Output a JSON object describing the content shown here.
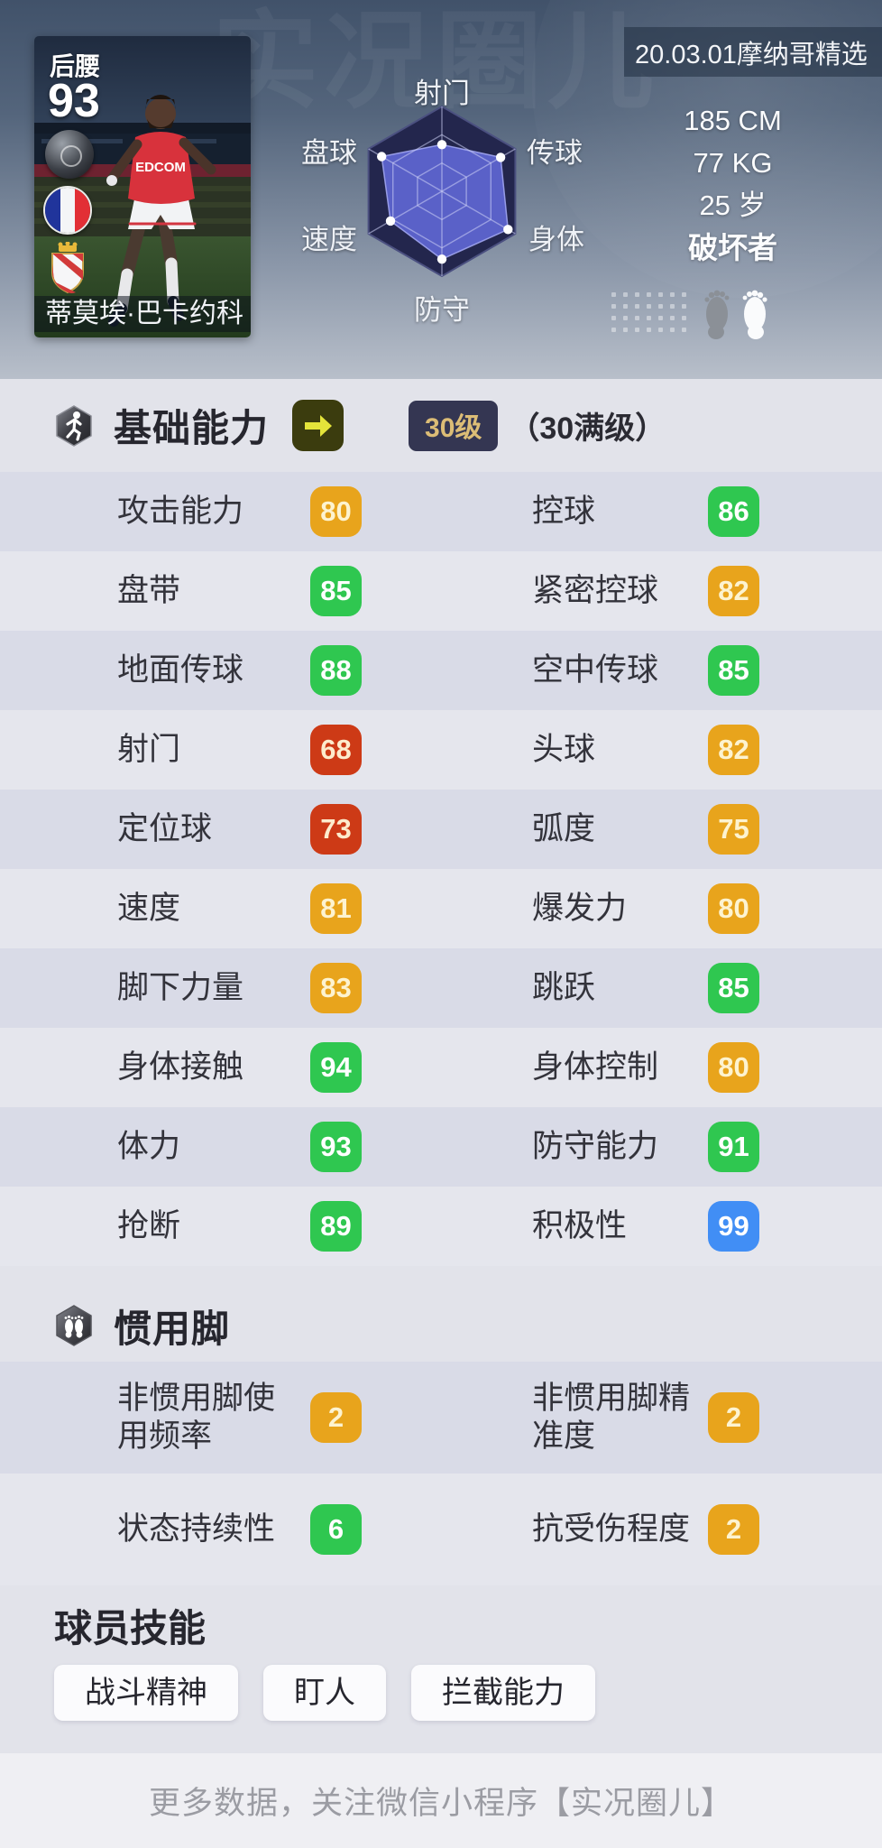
{
  "hero": {
    "banner": "20.03.01摩纳哥精选",
    "watermark": "实况圈儿",
    "card": {
      "position": "后腰",
      "rating": "93",
      "name": "蒂莫埃·巴卡约科",
      "shirt_text": "EDCOM"
    },
    "radar": {
      "labels": [
        "射门",
        "传球",
        "身体",
        "防守",
        "速度",
        "盘球"
      ],
      "values": [
        55,
        80,
        90,
        80,
        70,
        82
      ]
    },
    "physical": {
      "height": "185 CM",
      "weight": "77 KG",
      "age": "25 岁",
      "style": "破坏者"
    }
  },
  "base_section": {
    "title": "基础能力",
    "level_badge": "30级",
    "level_note": "（30满级）"
  },
  "tier_colors": {
    "green": "#2fc750",
    "orange": "#e8a41c",
    "red": "#cd3a16",
    "blue": "#418ef5"
  },
  "tier_text": {
    "green": "#ffffff",
    "orange": "#fdf3d0",
    "red": "#fdeccd",
    "blue": "#ffffff"
  },
  "stats": [
    {
      "left": {
        "label": "攻击能力",
        "value": "80",
        "tier": "orange"
      },
      "right": {
        "label": "控球",
        "value": "86",
        "tier": "green"
      }
    },
    {
      "left": {
        "label": "盘带",
        "value": "85",
        "tier": "green"
      },
      "right": {
        "label": "紧密控球",
        "value": "82",
        "tier": "orange"
      }
    },
    {
      "left": {
        "label": "地面传球",
        "value": "88",
        "tier": "green"
      },
      "right": {
        "label": "空中传球",
        "value": "85",
        "tier": "green"
      }
    },
    {
      "left": {
        "label": "射门",
        "value": "68",
        "tier": "red"
      },
      "right": {
        "label": "头球",
        "value": "82",
        "tier": "orange"
      }
    },
    {
      "left": {
        "label": "定位球",
        "value": "73",
        "tier": "red"
      },
      "right": {
        "label": "弧度",
        "value": "75",
        "tier": "orange"
      }
    },
    {
      "left": {
        "label": "速度",
        "value": "81",
        "tier": "orange"
      },
      "right": {
        "label": "爆发力",
        "value": "80",
        "tier": "orange"
      }
    },
    {
      "left": {
        "label": "脚下力量",
        "value": "83",
        "tier": "orange"
      },
      "right": {
        "label": "跳跃",
        "value": "85",
        "tier": "green"
      }
    },
    {
      "left": {
        "label": "身体接触",
        "value": "94",
        "tier": "green"
      },
      "right": {
        "label": "身体控制",
        "value": "80",
        "tier": "orange"
      }
    },
    {
      "left": {
        "label": "体力",
        "value": "93",
        "tier": "green"
      },
      "right": {
        "label": "防守能力",
        "value": "91",
        "tier": "green"
      }
    },
    {
      "left": {
        "label": "抢断",
        "value": "89",
        "tier": "green"
      },
      "right": {
        "label": "积极性",
        "value": "99",
        "tier": "blue"
      }
    }
  ],
  "foot_section": {
    "title": "惯用脚",
    "rows": [
      {
        "left": {
          "label": "非惯用脚使用频率",
          "value": "2",
          "tier": "orange"
        },
        "right": {
          "label": "非惯用脚精准度",
          "value": "2",
          "tier": "orange"
        }
      },
      {
        "left": {
          "label": "状态持续性",
          "value": "6",
          "tier": "green"
        },
        "right": {
          "label": "抗受伤程度",
          "value": "2",
          "tier": "orange"
        }
      }
    ]
  },
  "skills_section": {
    "title": "球员技能",
    "items": [
      "战斗精神",
      "盯人",
      "拦截能力"
    ]
  },
  "footer": {
    "text": "更多数据，关注微信小程序【实况圈儿】"
  }
}
